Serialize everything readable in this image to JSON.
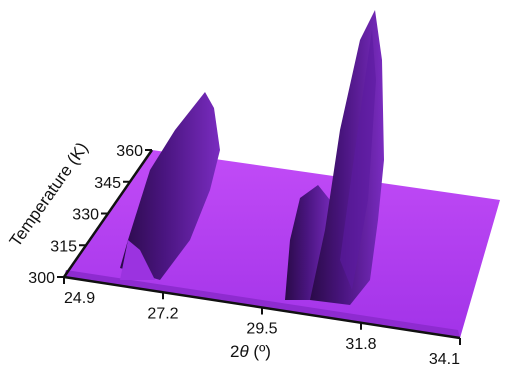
{
  "chart_data": {
    "type": "surface3d",
    "xlabel_prefix": "2",
    "xlabel_symbol": "θ",
    "xlabel_unit": " (º)",
    "ylabel": "Temperature (K)",
    "x_ticks": [
      "24.9",
      "27.2",
      "29.5",
      "31.8",
      "34.1"
    ],
    "y_ticks": [
      "300",
      "315",
      "330",
      "345",
      "360"
    ],
    "xlim": [
      24.9,
      34.1
    ],
    "ylim": [
      300,
      360
    ],
    "surface_color": "#b03cf0",
    "shadow_color": "#3a1060",
    "peaks": [
      {
        "center_2theta": 26.1,
        "relative_height": 0.55
      },
      {
        "center_2theta": 29.9,
        "relative_height": 0.35
      },
      {
        "center_2theta": 30.9,
        "relative_height": 1.0
      }
    ]
  }
}
